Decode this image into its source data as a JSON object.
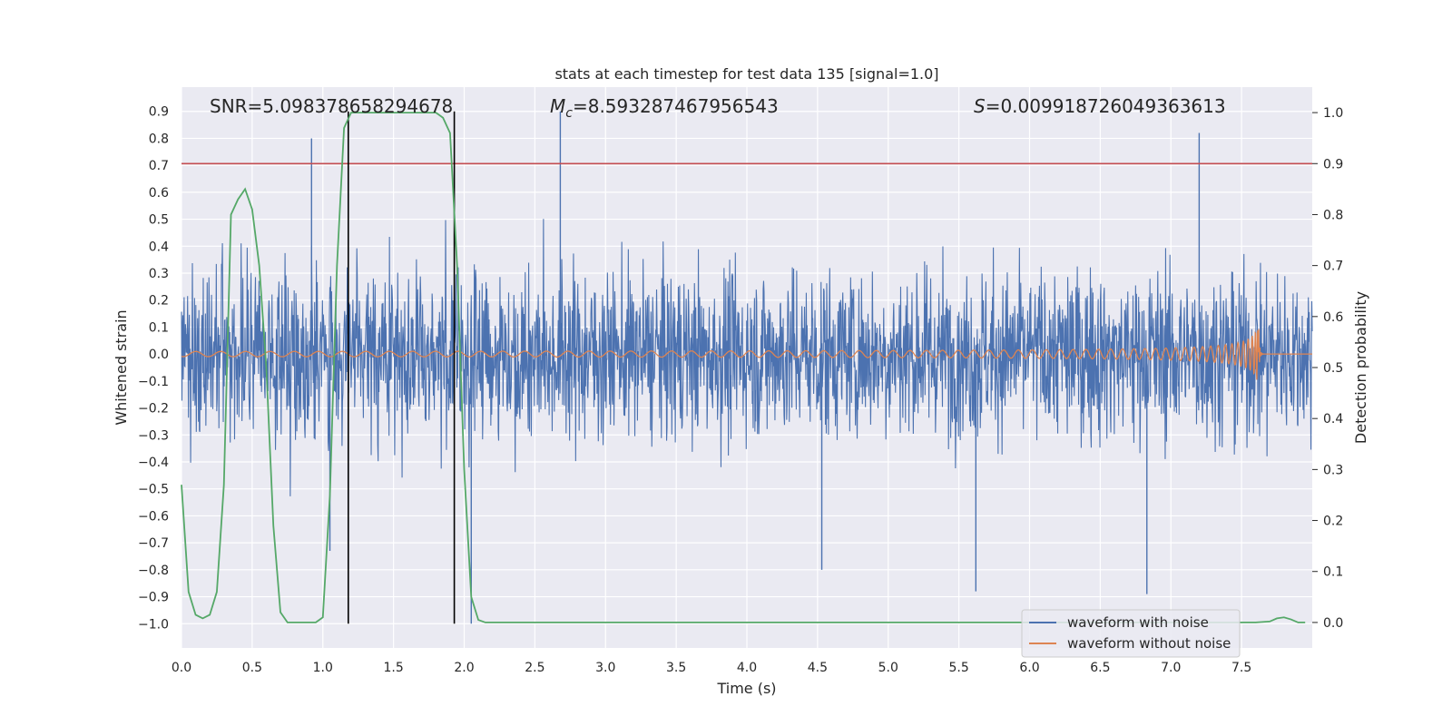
{
  "chart_data": {
    "type": "line",
    "title": "stats at each timestep for test data 135 [signal=1.0]",
    "xlabel": "Time (s)",
    "ylabel": "Whitened strain",
    "ylabel_right": "Detection probability",
    "xlim": [
      0.0,
      8.0
    ],
    "ylim": [
      -1.09,
      0.99
    ],
    "ylim_right": [
      -0.05,
      1.05
    ],
    "x_ticks": [
      0.0,
      0.5,
      1.0,
      1.5,
      2.0,
      2.5,
      3.0,
      3.5,
      4.0,
      4.5,
      5.0,
      5.5,
      6.0,
      6.5,
      7.0,
      7.5
    ],
    "x_tick_labels": [
      "0.0",
      "0.5",
      "1.0",
      "1.5",
      "2.0",
      "2.5",
      "3.0",
      "3.5",
      "4.0",
      "4.5",
      "5.0",
      "5.5",
      "6.0",
      "6.5",
      "7.0",
      "7.5"
    ],
    "y_ticks": [
      0.9,
      0.8,
      0.7,
      0.6,
      0.5,
      0.4,
      0.3,
      0.2,
      0.1,
      0.0,
      -0.1,
      -0.2,
      -0.3,
      -0.4,
      -0.5,
      -0.6,
      -0.7,
      -0.8,
      -0.9,
      -1.0
    ],
    "y_tick_labels": [
      "0.9",
      "0.8",
      "0.7",
      "0.6",
      "0.5",
      "0.4",
      "0.3",
      "0.2",
      "0.1",
      "0.0",
      "−0.1",
      "−0.2",
      "−0.3",
      "−0.4",
      "−0.5",
      "−0.6",
      "−0.7",
      "−0.8",
      "−0.9",
      "−1.0"
    ],
    "y_ticks_right": [
      1.0,
      0.9,
      0.8,
      0.7,
      0.6,
      0.5,
      0.4,
      0.3,
      0.2,
      0.1,
      0.0
    ],
    "y_tick_labels_right": [
      "1.0",
      "0.9",
      "0.8",
      "0.7",
      "0.6",
      "0.5",
      "0.4",
      "0.3",
      "0.2",
      "0.1",
      "0.0"
    ],
    "annotations": {
      "snr": "SNR=5.098378658294678",
      "mc_symbol": "M",
      "mc_subscript": "c",
      "mc_value": "=8.593287467956543",
      "s_symbol": "S",
      "s_value": "=0.009918726049363613"
    },
    "threshold_line": {
      "y_right": 0.9,
      "color": "#c44e52"
    },
    "vertical_lines": [
      1.18,
      1.93
    ],
    "vertical_line_range_left": [
      -1.0,
      0.9
    ],
    "legend": {
      "position": "lower-right",
      "entries": [
        {
          "label": "waveform with noise",
          "color": "#4c72b0"
        },
        {
          "label": "waveform without noise",
          "color": "#dd8452"
        }
      ]
    },
    "series": [
      {
        "name": "waveform with noise",
        "color": "#4c72b0",
        "note_envelope": "dense noise, approx Gaussian, sigma ~0.18, range approx -1.0 to 0.9",
        "peaks": [
          {
            "x": 0.92,
            "y": 0.8
          },
          {
            "x": 2.68,
            "y": 0.9
          },
          {
            "x": 7.2,
            "y": 0.82
          },
          {
            "x": 6.83,
            "y": -0.89
          },
          {
            "x": 5.62,
            "y": -0.88
          },
          {
            "x": 2.05,
            "y": -1.0
          },
          {
            "x": 4.53,
            "y": -0.8
          },
          {
            "x": 1.05,
            "y": -0.73
          }
        ]
      },
      {
        "name": "waveform without noise",
        "color": "#dd8452",
        "note": "chirp: frequency and amplitude increase until merger at ~7.62 s, then ringdown",
        "merger_time": 7.62,
        "peak_amplitude": 0.12
      },
      {
        "name": "detection probability",
        "axis": "right",
        "color": "#55a868",
        "x": [
          0.0,
          0.05,
          0.1,
          0.15,
          0.2,
          0.25,
          0.3,
          0.35,
          0.4,
          0.45,
          0.5,
          0.55,
          0.6,
          0.65,
          0.7,
          0.75,
          0.8,
          0.85,
          0.9,
          0.95,
          1.0,
          1.05,
          1.1,
          1.15,
          1.2,
          1.25,
          1.3,
          1.35,
          1.4,
          1.5,
          1.6,
          1.7,
          1.8,
          1.85,
          1.9,
          1.95,
          2.0,
          2.05,
          2.1,
          2.15,
          2.2,
          2.25,
          2.3,
          2.4,
          3.0,
          4.0,
          5.0,
          6.0,
          7.0,
          7.5,
          7.6,
          7.7,
          7.75,
          7.8,
          7.85,
          7.9,
          7.95
        ],
        "y": [
          0.27,
          0.06,
          0.015,
          0.008,
          0.015,
          0.06,
          0.27,
          0.8,
          0.83,
          0.85,
          0.81,
          0.7,
          0.5,
          0.19,
          0.02,
          0.0,
          0.0,
          0.0,
          0.0,
          0.0,
          0.01,
          0.25,
          0.7,
          0.97,
          1.0,
          1.0,
          1.0,
          1.0,
          1.0,
          1.0,
          1.0,
          1.0,
          1.0,
          0.99,
          0.96,
          0.7,
          0.3,
          0.05,
          0.005,
          0.0,
          0.0,
          0.0,
          0.0,
          0.0,
          0.0,
          0.0,
          0.0,
          0.0,
          0.0,
          0.0,
          0.0,
          0.002,
          0.008,
          0.01,
          0.006,
          0.0,
          0.0
        ]
      }
    ]
  }
}
